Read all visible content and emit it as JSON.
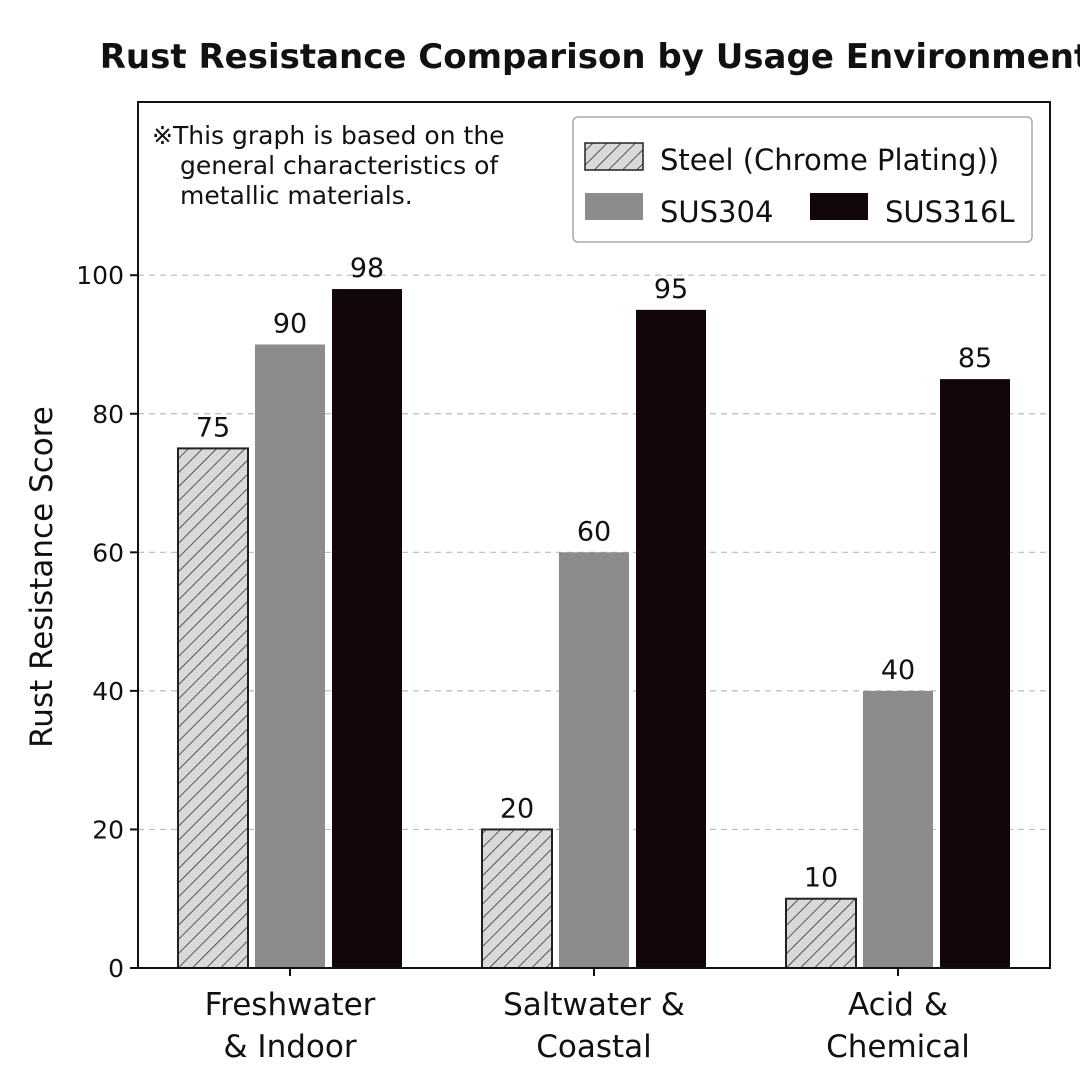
{
  "chart_data": {
    "type": "bar",
    "title": "Rust Resistance Comparison by Usage Environment",
    "xlabel": "",
    "ylabel": "Rust Resistance Score",
    "ylim": [
      0,
      125
    ],
    "yticks": [
      0,
      20,
      40,
      60,
      80,
      100
    ],
    "grid": true,
    "legend_position": "top-right",
    "note": [
      "※This graph is based on the",
      "general characteristics of",
      "metallic materials."
    ],
    "categories": [
      [
        "Freshwater",
        "& Indoor"
      ],
      [
        "Saltwater &",
        "Coastal"
      ],
      [
        "Acid &",
        "Chemical"
      ]
    ],
    "series": [
      {
        "name": "Steel (Chrome Plating))",
        "values": [
          75,
          20,
          10
        ],
        "fill": "hatch",
        "color": "#d9d9d9"
      },
      {
        "name": "SUS304",
        "values": [
          90,
          60,
          40
        ],
        "fill": "solid",
        "color": "#8c8c8c"
      },
      {
        "name": "SUS316L",
        "values": [
          98,
          95,
          85
        ],
        "fill": "solid",
        "color": "#120608"
      }
    ]
  }
}
